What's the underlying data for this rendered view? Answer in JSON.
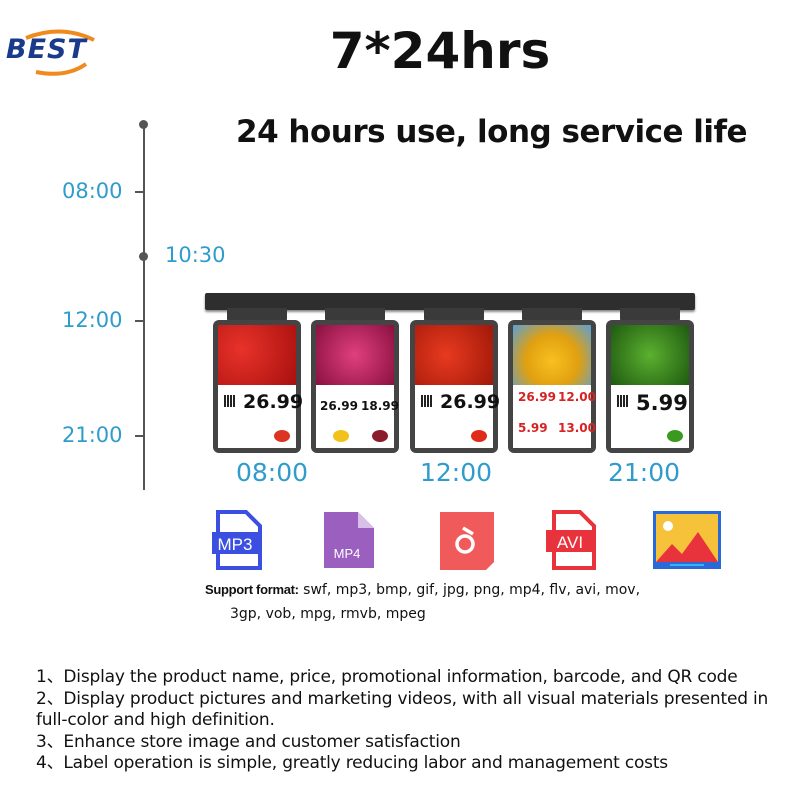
{
  "logo": {
    "text": "BEST"
  },
  "title": "7*24hrs",
  "subtitle": "24 hours use, long service life",
  "timeline": {
    "labels": [
      "08:00",
      "10:30",
      "12:00",
      "21:00"
    ]
  },
  "screens": [
    {
      "prices": [
        "26.99"
      ]
    },
    {
      "prices": [
        "26.99",
        "18.99"
      ]
    },
    {
      "prices": [
        "26.99"
      ]
    },
    {
      "prices": [
        "26.99",
        "12.00",
        "5.99",
        "13.00"
      ]
    },
    {
      "prices": [
        "5.99"
      ]
    }
  ],
  "screen_times": [
    "08:00",
    "12:00",
    "21:00"
  ],
  "format_icons": [
    {
      "icon": "mp3-file-icon",
      "label": "MP3",
      "color": "#3b4fe0"
    },
    {
      "icon": "mp4-file-icon",
      "label": "MP4",
      "color": "#9b5fc0"
    },
    {
      "icon": "music-file-icon",
      "label": "",
      "color": "#f05a5a"
    },
    {
      "icon": "avi-file-icon",
      "label": "AVI",
      "color": "#e8323c"
    },
    {
      "icon": "image-file-icon",
      "label": "",
      "color": "#f5c23a"
    }
  ],
  "support": {
    "label": "Support format:",
    "line1": "swf, mp3, bmp, gif, jpg, png, mp4, flv, avi, mov,",
    "line2": "3gp, vob, mpg, rmvb, mpeg"
  },
  "features": [
    "1、Display the product name, price, promotional information, barcode, and QR code",
    "2、Display product pictures and marketing videos, with all visual materials presented in full-color and high definition.",
    "3、Enhance store image and customer satisfaction",
    "4、Label operation is simple, greatly reducing labor and management costs"
  ],
  "colors": {
    "accent": "#2f9ccc",
    "logo_blue": "#1a3a8c",
    "logo_orange": "#f08a1c"
  }
}
